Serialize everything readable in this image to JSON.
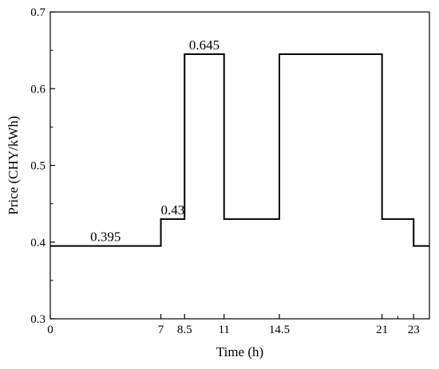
{
  "chart_data": {
    "type": "line",
    "step": "post",
    "xlabel": "Time (h)",
    "ylabel": "Price (CHY/kWh)",
    "xlim": [
      0,
      24
    ],
    "ylim": [
      0.3,
      0.7
    ],
    "x_ticks": [
      0,
      7,
      8.5,
      11,
      14.5,
      21,
      23
    ],
    "x_tick_labels": [
      "0",
      "7",
      "8.5",
      "11",
      "14.5",
      "21",
      "23"
    ],
    "x_minor_ticks": [
      22
    ],
    "y_ticks": [
      0.3,
      0.4,
      0.5,
      0.6,
      0.7
    ],
    "y_tick_labels": [
      "0.3",
      "0.4",
      "0.5",
      "0.6",
      "0.7"
    ],
    "grid": false,
    "legend": "none",
    "series": [
      {
        "color": "#000000",
        "x": [
          0,
          7,
          8.5,
          11,
          14.5,
          21,
          23,
          24
        ],
        "y": [
          0.395,
          0.43,
          0.645,
          0.43,
          0.645,
          0.43,
          0.395,
          0.395
        ]
      }
    ],
    "annotations": [
      {
        "text": "0.395",
        "x": 3.5,
        "y": 0.395
      },
      {
        "text": "0.43",
        "x": 7.75,
        "y": 0.43
      },
      {
        "text": "0.645",
        "x": 9.75,
        "y": 0.645
      }
    ]
  }
}
